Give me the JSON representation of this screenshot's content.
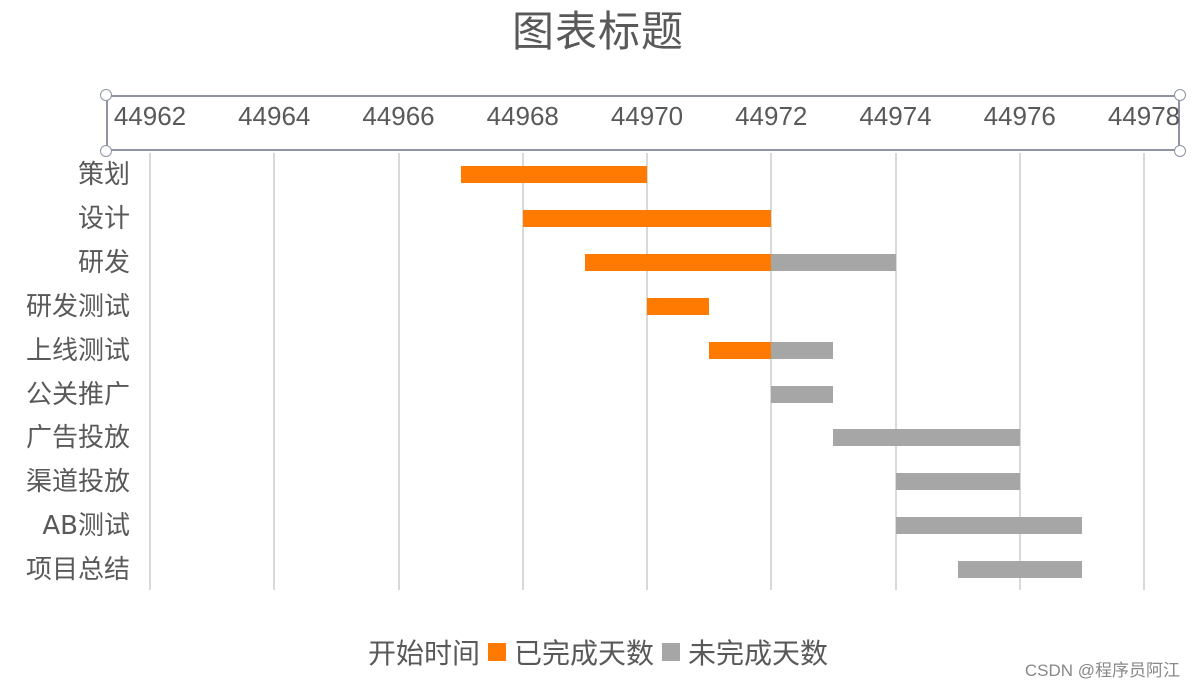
{
  "chart_data": {
    "type": "bar",
    "subtype": "stacked-horizontal-gantt",
    "title": "图表标题",
    "xlabel": "",
    "ylabel": "",
    "x_axis_position": "top",
    "xlim": [
      44962,
      44978
    ],
    "x_ticks": [
      "44962",
      "44964",
      "44966",
      "44968",
      "44970",
      "44972",
      "44974",
      "44976",
      "44978"
    ],
    "grid": true,
    "legend_position": "bottom",
    "categories": [
      "策划",
      "设计",
      "研发",
      "研发测试",
      "上线测试",
      "公关推广",
      "广告投放",
      "渠道投放",
      "AB测试",
      "项目总结"
    ],
    "series": [
      {
        "name": "开始时间",
        "color": "transparent",
        "values": [
          44967,
          44968,
          44969,
          44970,
          44971,
          44972,
          44973,
          44974,
          44974,
          44975
        ]
      },
      {
        "name": "已完成天数",
        "color": "#ff7a00",
        "values": [
          3,
          4,
          3,
          1,
          1,
          0,
          0,
          0,
          0,
          0
        ]
      },
      {
        "name": "未完成天数",
        "color": "#a6a6a6",
        "values": [
          0,
          0,
          2,
          0,
          1,
          1,
          3,
          2,
          3,
          2
        ]
      }
    ]
  },
  "legend": {
    "items": [
      {
        "label": "开始时间",
        "color": "transparent"
      },
      {
        "label": "已完成天数",
        "color": "#ff7a00"
      },
      {
        "label": "未完成天数",
        "color": "#a6a6a6"
      }
    ]
  },
  "watermark": "CSDN @程序员阿江"
}
